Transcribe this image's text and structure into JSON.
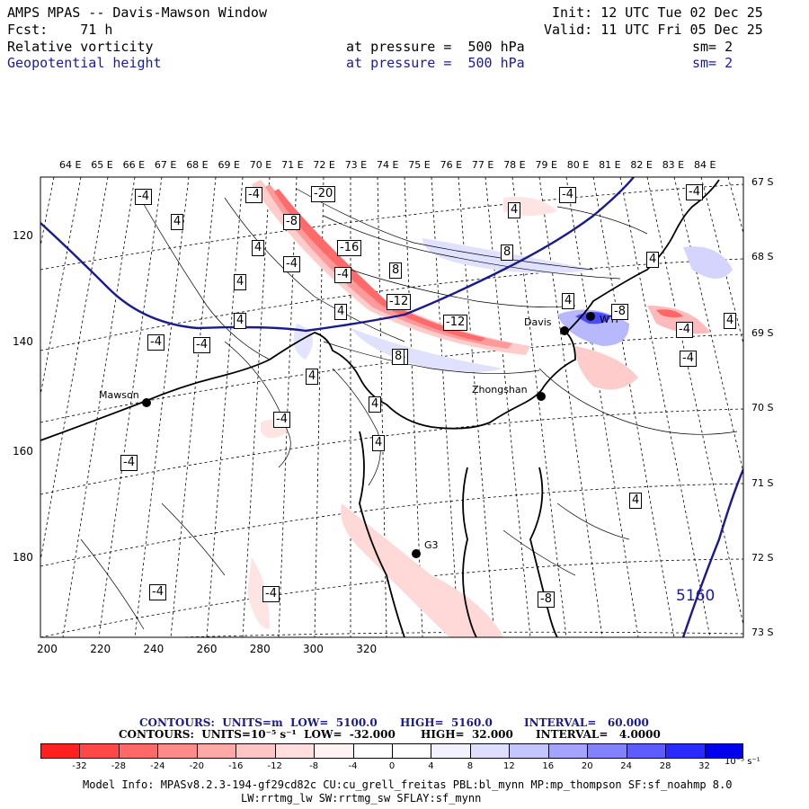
{
  "header": {
    "title": "AMPS MPAS -- Davis-Mawson Window",
    "fcst": "Fcst:    71 h",
    "init": "Init: 12 UTC Tue 02 Dec 25",
    "valid": "Valid: 11 UTC Fri 05 Dec 25",
    "field1_name": "Relative vorticity",
    "field1_level": "at pressure =  500 hPa",
    "field1_sm": "sm= 2",
    "field2_name": "Geopotential height",
    "field2_level": "at pressure =  500 hPa",
    "field2_sm": "sm= 2"
  },
  "axes": {
    "top_longitudes": [
      "64 E",
      "65 E",
      "66 E",
      "67 E",
      "68 E",
      "69 E",
      "70 E",
      "71 E",
      "72 E",
      "73 E",
      "74 E",
      "75 E",
      "76 E",
      "77 E",
      "78 E",
      "79 E",
      "80 E",
      "81 E",
      "82 E",
      "83 E",
      "84 E"
    ],
    "right_latitudes": [
      "67 S",
      "68 S",
      "69 S",
      "70 S",
      "71 S",
      "72 S",
      "73 S"
    ],
    "left_ticks": [
      "120",
      "140",
      "160",
      "180"
    ],
    "bottom_ticks": [
      "200",
      "220",
      "240",
      "260",
      "280",
      "300",
      "320"
    ]
  },
  "stations": [
    "Mawson",
    "Zhongshan",
    "Davis",
    "WTP",
    "G3"
  ],
  "height_contour_label": "5160",
  "vort_labels": [
    "-4",
    "4",
    "-4",
    "-20",
    "-8",
    "-16",
    "-4",
    "8",
    "-4",
    "8",
    "4",
    "4",
    "-12",
    "-12",
    "4",
    "4",
    "8",
    "-8",
    "4",
    "-4",
    "-4",
    "8",
    "-4",
    "4",
    "4",
    "-4",
    "4",
    "-4",
    "-4",
    "4",
    "-4",
    "4",
    "4",
    "-4",
    "-4",
    "4",
    "-4",
    "-8"
  ],
  "legend": {
    "line1_a": "CONTOURS:  UNITS=m  LOW=  5100.0",
    "line1_b": "HIGH=  5160.0",
    "line1_c": "INTERVAL=   60.000",
    "line2_a": "CONTOURS:  UNITS=10⁻⁵ s⁻¹  LOW=  -32.000",
    "line2_b": "HIGH=  32.000",
    "line2_c": "INTERVAL=   4.0000",
    "colorbar_ticks": [
      "-32",
      "-28",
      "-24",
      "-20",
      "-16",
      "-12",
      "-8",
      "-4",
      "0",
      "4",
      "8",
      "12",
      "16",
      "20",
      "24",
      "28",
      "32"
    ],
    "colorbar_units": "10⁻⁵ s⁻¹",
    "colorbar_colors": [
      "#ff2020",
      "#ff4848",
      "#ff6868",
      "#ff8a8a",
      "#ffa8a8",
      "#ffc4c4",
      "#ffdede",
      "#fff2f2",
      "#ffffff",
      "#ffffff",
      "#f2f2ff",
      "#dedeff",
      "#c4c4ff",
      "#a4a4ff",
      "#8282ff",
      "#5c5cff",
      "#2a2aff",
      "#0000ee"
    ]
  },
  "footer": {
    "line1": "Model Info: MPASv8.2.3-194-gf29cd82c CU:cu_grell_freitas PBL:bl_mynn MP:mp_thompson SF:sf_noahmp 8.0",
    "line2": "LW:rrtmg_lw SW:rrtmg_sw SFLAY:sf_mynn"
  }
}
